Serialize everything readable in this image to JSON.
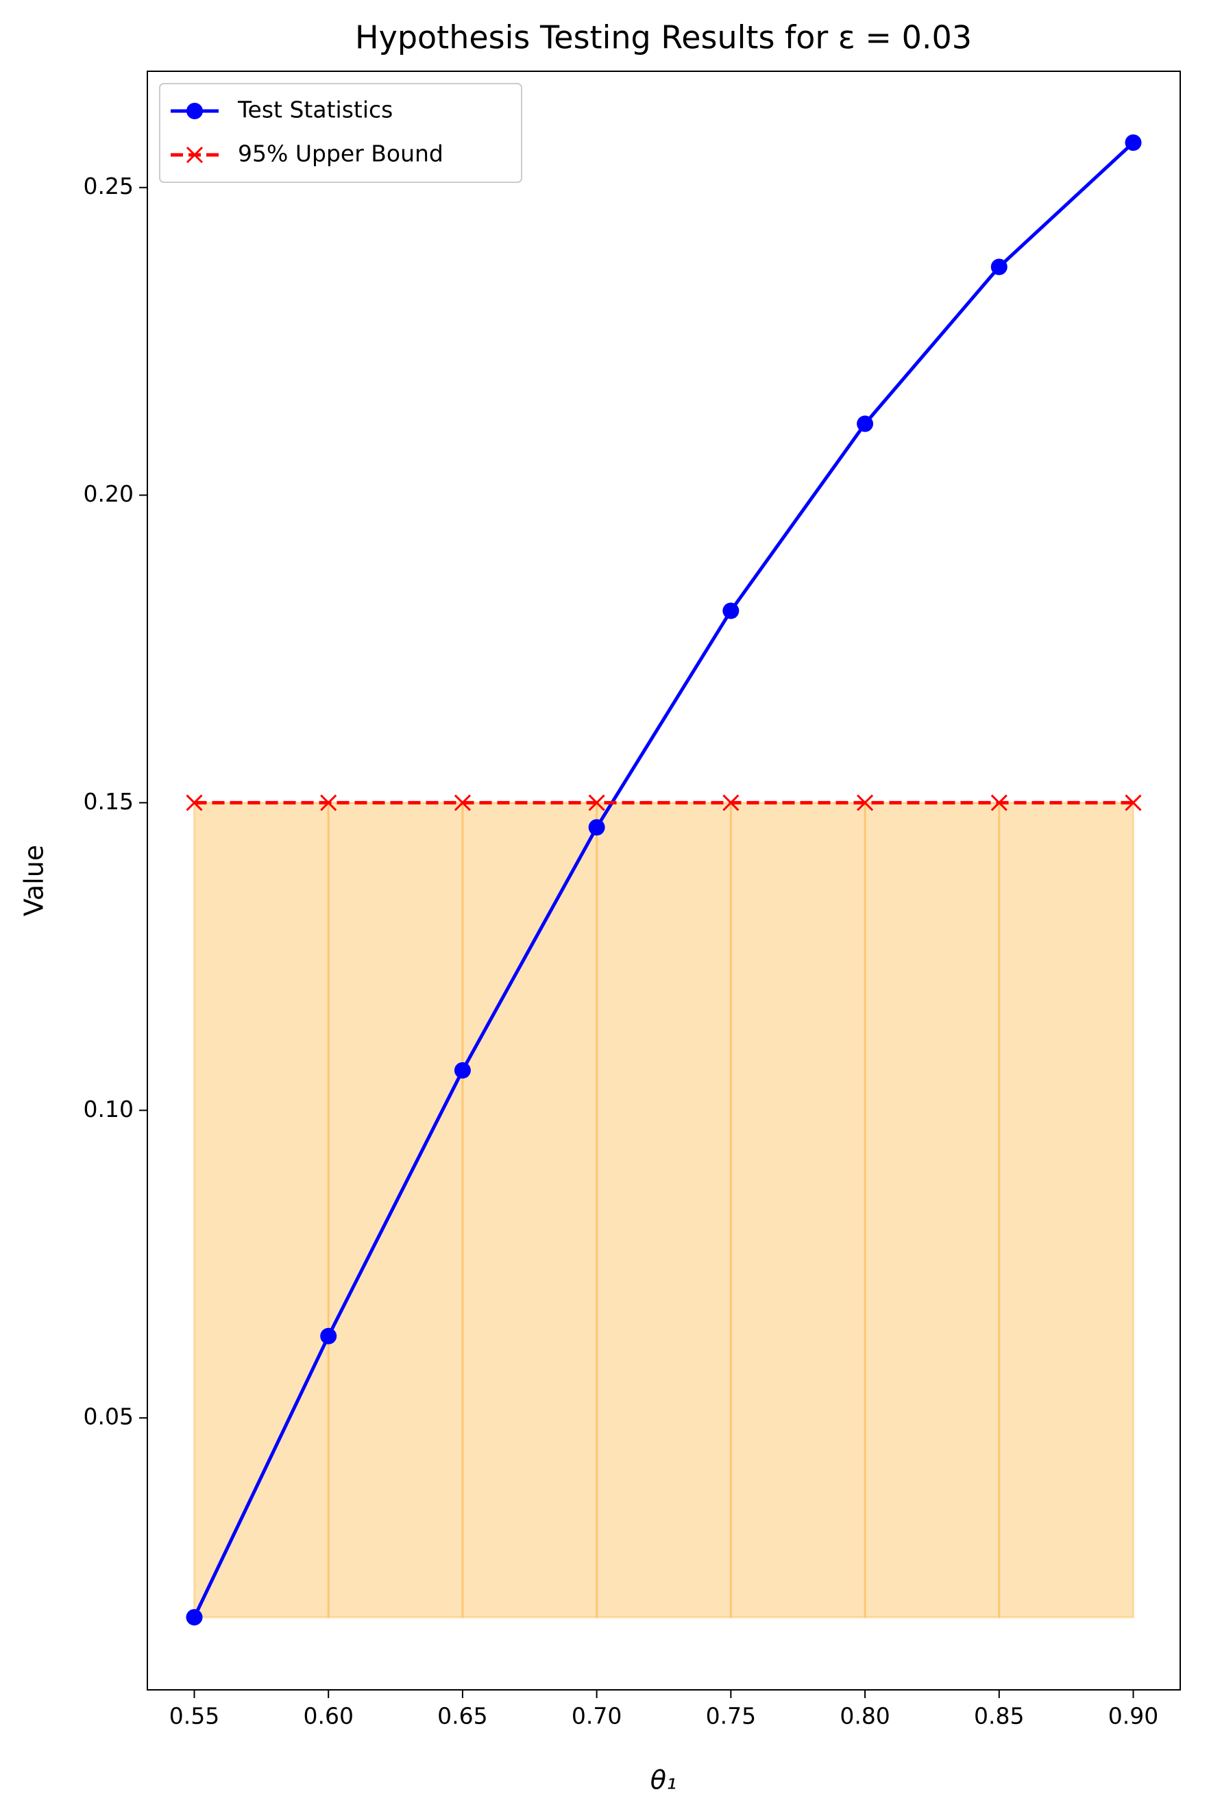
{
  "chart_data": {
    "type": "line",
    "title": "Hypothesis Testing Results for ε = 0.03",
    "x_label": "θ₁",
    "y_label": "Value",
    "x": [
      0.55,
      0.6,
      0.65,
      0.7,
      0.75,
      0.8,
      0.85,
      0.9
    ],
    "series": [
      {
        "name": "Test Statistics",
        "color": "#0000ff",
        "marker": "o",
        "linestyle": "solid",
        "values": [
          0.0176,
          0.0633,
          0.1065,
          0.146,
          0.1812,
          0.2116,
          0.2371,
          0.2573
        ]
      },
      {
        "name": "95% Upper Bound",
        "color": "#ff0000",
        "marker": "x",
        "linestyle": "dashed",
        "values": [
          0.15,
          0.15,
          0.15,
          0.15,
          0.15,
          0.15,
          0.15,
          0.15
        ]
      }
    ],
    "fill_between": {
      "color": "#fdb94a",
      "alpha": 0.4,
      "lower": [
        0.0176,
        0.0176,
        0.0176,
        0.0176,
        0.0176,
        0.0176,
        0.0176,
        0.0176
      ],
      "upper": [
        0.15,
        0.15,
        0.15,
        0.15,
        0.15,
        0.15,
        0.15,
        0.15
      ]
    },
    "xlim": [
      0.5325,
      0.9175
    ],
    "ylim": [
      0.0058,
      0.2689
    ],
    "xticks": [
      0.55,
      {
        "value": 0.6,
        "label": "0.60"
      },
      0.65,
      {
        "value": 0.7,
        "label": "0.70"
      },
      0.75,
      {
        "value": 0.8,
        "label": "0.80"
      },
      0.85,
      {
        "value": 0.9,
        "label": "0.90"
      }
    ],
    "yticks": [
      0.05,
      {
        "value": 0.1,
        "label": "0.10"
      },
      0.15,
      {
        "value": 0.2,
        "label": "0.20"
      },
      0.25
    ],
    "grid": false,
    "legend": "upper left"
  }
}
